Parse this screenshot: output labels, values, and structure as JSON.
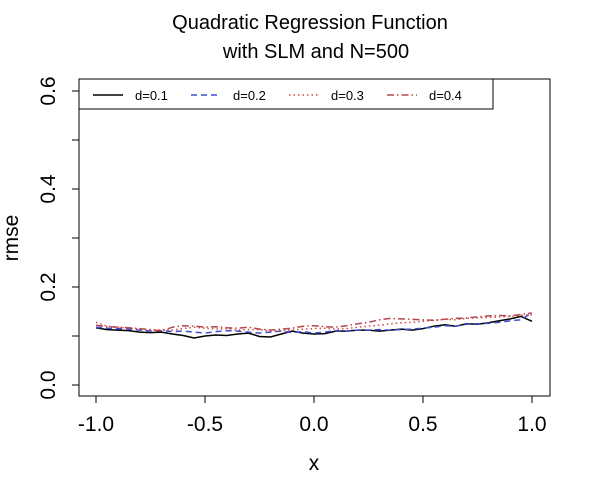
{
  "chart_data": {
    "type": "line",
    "title_lines": [
      "Quadratic Regression Function",
      "with SLM and N=500"
    ],
    "xlabel": "x",
    "ylabel": "rmse",
    "xlim": [
      -1.0,
      1.0
    ],
    "ylim": [
      0.0,
      0.6
    ],
    "x_ticks": [
      -1.0,
      -0.5,
      0.0,
      0.5,
      1.0
    ],
    "x_tick_labels": [
      "-1.0",
      "-0.5",
      "0.0",
      "0.5",
      "1.0"
    ],
    "y_ticks": [
      0.0,
      0.1,
      0.2,
      0.3,
      0.4,
      0.5,
      0.6
    ],
    "y_tick_labels": [
      "0.0",
      "",
      "0.2",
      "",
      "0.4",
      "",
      "0.6"
    ],
    "grid": false,
    "legend_position": "top-left",
    "x": [
      -1.0,
      -0.95,
      -0.9,
      -0.85,
      -0.8,
      -0.75,
      -0.7,
      -0.65,
      -0.6,
      -0.55,
      -0.5,
      -0.45,
      -0.4,
      -0.35,
      -0.3,
      -0.25,
      -0.2,
      -0.15,
      -0.1,
      -0.05,
      0.0,
      0.05,
      0.1,
      0.15,
      0.2,
      0.25,
      0.3,
      0.35,
      0.4,
      0.45,
      0.5,
      0.55,
      0.6,
      0.65,
      0.7,
      0.75,
      0.8,
      0.85,
      0.9,
      0.95,
      1.0
    ],
    "series": [
      {
        "name": "d=0.1",
        "color": "#000000",
        "dash": "solid",
        "values": [
          0.117,
          0.113,
          0.112,
          0.111,
          0.108,
          0.107,
          0.108,
          0.104,
          0.101,
          0.096,
          0.1,
          0.102,
          0.101,
          0.104,
          0.106,
          0.099,
          0.098,
          0.104,
          0.11,
          0.106,
          0.104,
          0.105,
          0.11,
          0.11,
          0.112,
          0.112,
          0.11,
          0.112,
          0.114,
          0.112,
          0.115,
          0.12,
          0.123,
          0.12,
          0.125,
          0.124,
          0.127,
          0.131,
          0.135,
          0.14,
          0.13
        ]
      },
      {
        "name": "d=0.2",
        "color": "#3a4fd0",
        "dash": "dashed",
        "values": [
          0.118,
          0.116,
          0.115,
          0.114,
          0.112,
          0.11,
          0.111,
          0.109,
          0.11,
          0.108,
          0.106,
          0.109,
          0.111,
          0.11,
          0.108,
          0.106,
          0.108,
          0.11,
          0.107,
          0.109,
          0.106,
          0.108,
          0.111,
          0.11,
          0.112,
          0.112,
          0.113,
          0.112,
          0.113,
          0.114,
          0.116,
          0.118,
          0.121,
          0.12,
          0.124,
          0.125,
          0.126,
          0.128,
          0.131,
          0.133,
          0.148
        ]
      },
      {
        "name": "d=0.3",
        "color": "#d24a4a",
        "dash": "dotted",
        "values": [
          0.128,
          0.12,
          0.118,
          0.116,
          0.114,
          0.112,
          0.113,
          0.112,
          0.115,
          0.118,
          0.116,
          0.114,
          0.115,
          0.112,
          0.113,
          0.113,
          0.11,
          0.111,
          0.112,
          0.114,
          0.115,
          0.116,
          0.114,
          0.115,
          0.118,
          0.12,
          0.122,
          0.125,
          0.127,
          0.128,
          0.13,
          0.132,
          0.134,
          0.133,
          0.136,
          0.137,
          0.138,
          0.139,
          0.14,
          0.142,
          0.143
        ]
      },
      {
        "name": "d=0.4",
        "color": "#b5484d",
        "dash": "dashdot",
        "values": [
          0.122,
          0.119,
          0.118,
          0.117,
          0.115,
          0.113,
          0.11,
          0.118,
          0.121,
          0.12,
          0.118,
          0.119,
          0.117,
          0.116,
          0.118,
          0.114,
          0.112,
          0.114,
          0.116,
          0.12,
          0.121,
          0.119,
          0.118,
          0.121,
          0.125,
          0.128,
          0.133,
          0.136,
          0.135,
          0.134,
          0.133,
          0.132,
          0.134,
          0.136,
          0.137,
          0.139,
          0.141,
          0.142,
          0.141,
          0.144,
          0.147
        ]
      }
    ]
  }
}
